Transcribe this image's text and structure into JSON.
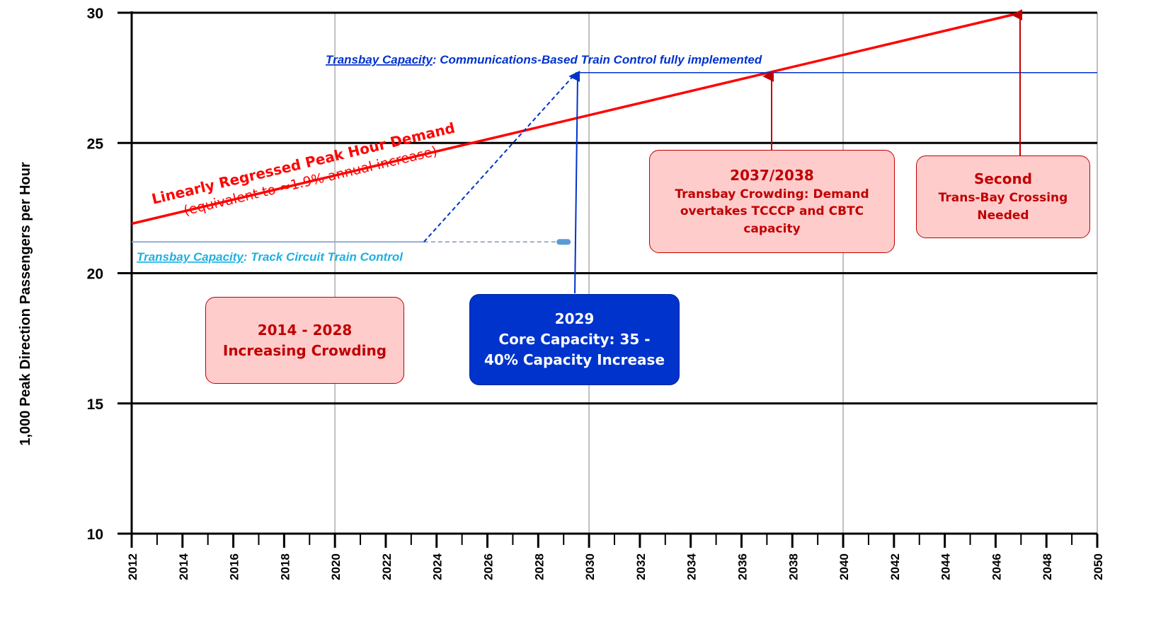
{
  "chart_data": {
    "type": "line",
    "ylabel": "1,000 Peak Direction Passengers per Hour",
    "xlim": [
      2012,
      2050
    ],
    "xticks": [
      2012,
      2014,
      2016,
      2018,
      2020,
      2022,
      2024,
      2026,
      2028,
      2030,
      2032,
      2034,
      2036,
      2038,
      2040,
      2042,
      2044,
      2046,
      2048,
      2050
    ],
    "xminor_step": 1,
    "xgrid": [
      2020,
      2030,
      2040,
      2050
    ],
    "ylim": [
      10,
      30
    ],
    "yticks": [
      10,
      15,
      20,
      25,
      30
    ],
    "grid": true,
    "series": [
      {
        "color": "#ff0000",
        "x": [
          2012,
          2047
        ],
        "values": [
          21.9,
          30
        ],
        "width": 3.5
      },
      {
        "color": "#8eaadb",
        "x": [
          2012,
          2023.5
        ],
        "values": [
          21.2,
          21.2
        ],
        "width": 2
      },
      {
        "color": "#8497b0",
        "x": [
          2023.5,
          2029
        ],
        "values": [
          21.2,
          21.2
        ],
        "width": 1.5,
        "dashed": true,
        "end_marker": true
      },
      {
        "color": "#0033cc",
        "x": [
          2023.5,
          2029.5
        ],
        "values": [
          21.2,
          27.7
        ],
        "width": 2,
        "dashed": true
      },
      {
        "color": "#0033cc",
        "x": [
          2029.5,
          2050
        ],
        "values": [
          27.7,
          27.7
        ],
        "width": 1.5
      }
    ],
    "annotations": {
      "demand_title": "Linearly Regressed Peak Hour Demand",
      "demand_sub": "(equivalent to ≈1.9% annual increase)",
      "cbtc_link": "Transbay Capacity",
      "cbtc_text": ": Communications-Based Train Control fully implemented",
      "track_link": "Transbay Capacity",
      "track_text": ": Track Circuit Train Control",
      "boxes": [
        [
          "2014 - 2028",
          "Increasing Crowding"
        ],
        [
          "2029",
          "Core Capacity: 35 -",
          "40% Capacity Increase"
        ],
        [
          "2037/2038",
          "Transbay Crowding: Demand",
          "overtakes TCCCP and CBTC",
          "capacity"
        ],
        [
          "Second",
          "Trans-Bay Crossing",
          "Needed"
        ]
      ]
    }
  }
}
